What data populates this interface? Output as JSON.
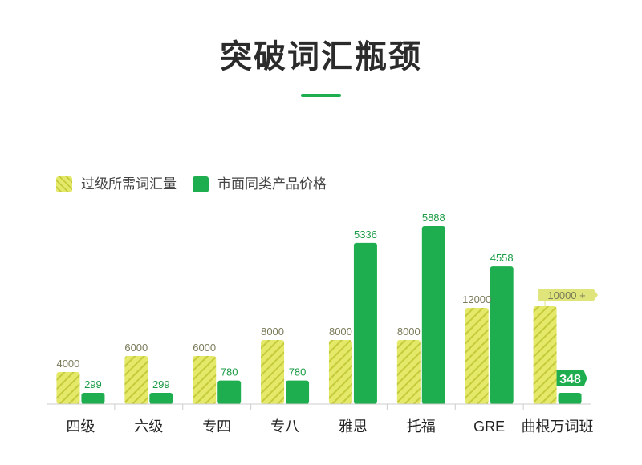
{
  "title": "突破词汇瓶颈",
  "colors": {
    "series_a": "#e4e96a",
    "series_a_stripe": "#c5ca3a",
    "series_b": "#1fae4f",
    "series_b_stripe": "#178f3f",
    "badge_a": "#dfe57a",
    "badge_b": "#1fae4f",
    "axis": "#cccccc",
    "title_underline": "#1fae4f"
  },
  "chart_data": {
    "type": "bar",
    "title": "突破词汇瓶颈",
    "categories": [
      "四级",
      "六级",
      "专四",
      "专八",
      "雅思",
      "托福",
      "GRE",
      "曲根万词班"
    ],
    "series": [
      {
        "name": "过级所需词汇量",
        "values": [
          4000,
          6000,
          6000,
          8000,
          8000,
          8000,
          12000,
          10000
        ],
        "labels": [
          "4000",
          "6000",
          "6000",
          "8000",
          "8000",
          "8000",
          "12000",
          "10000 +"
        ]
      },
      {
        "name": "市面同类产品价格",
        "values": [
          299,
          299,
          780,
          780,
          5336,
          5888,
          4558,
          348
        ],
        "labels": [
          "299",
          "299",
          "780",
          "780",
          "5336",
          "5888",
          "4558",
          "348"
        ]
      }
    ],
    "legend_position": "top-left",
    "grid": false
  }
}
